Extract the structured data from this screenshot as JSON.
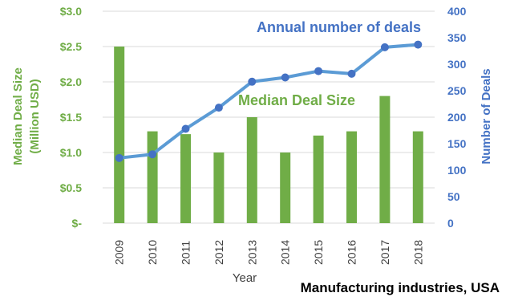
{
  "chart_data": {
    "type": "bar+line",
    "categories": [
      "2009",
      "2010",
      "2011",
      "2012",
      "2013",
      "2014",
      "2015",
      "2016",
      "2017",
      "2018"
    ],
    "series": [
      {
        "name": "Median Deal Size",
        "type": "bar",
        "axis": "left",
        "color": "#70ad47",
        "values": [
          2.5,
          1.3,
          1.26,
          1.0,
          1.5,
          1.0,
          1.24,
          1.3,
          1.8,
          1.3
        ]
      },
      {
        "name": "Annual number of deals",
        "type": "line",
        "axis": "right",
        "color": "#4472c4",
        "values": [
          123,
          130,
          178,
          218,
          267,
          275,
          287,
          282,
          332,
          337
        ]
      }
    ],
    "xlabel": "Year",
    "ylabel_left": "Median Deal Size (Million USD)",
    "ylabel_left_lines": [
      "Median Deal Size",
      "(Million USD)"
    ],
    "ylabel_right": "Number of Deals",
    "ylim_left": [
      0,
      3.0
    ],
    "ylim_right": [
      0,
      400
    ],
    "yticks_left": [
      {
        "value": 0,
        "label": "$-"
      },
      {
        "value": 0.5,
        "label": "$0.5"
      },
      {
        "value": 1.0,
        "label": "$1.0"
      },
      {
        "value": 1.5,
        "label": "$1.5"
      },
      {
        "value": 2.0,
        "label": "$2.0"
      },
      {
        "value": 2.5,
        "label": "$2.5"
      },
      {
        "value": 3.0,
        "label": "$3.0"
      }
    ],
    "yticks_right": [
      0,
      50,
      100,
      150,
      200,
      250,
      300,
      350,
      400
    ],
    "grid": true,
    "annotations": {
      "line_label": "Annual number of deals",
      "bar_label": "Median Deal Size"
    },
    "caption": "Manufacturing industries, USA"
  }
}
